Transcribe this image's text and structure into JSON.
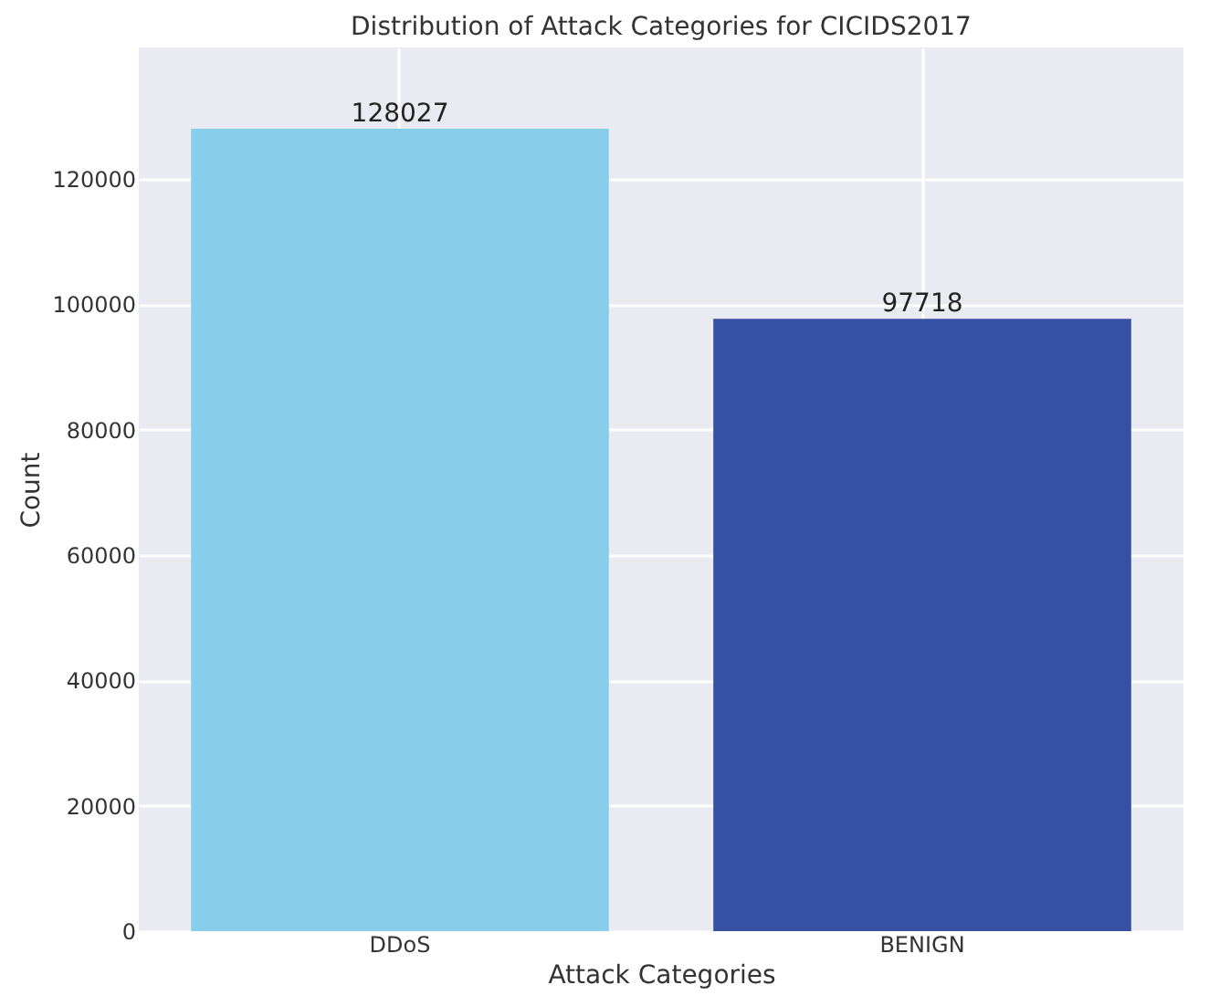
{
  "chart_data": {
    "type": "bar",
    "title": "Distribution of Attack Categories for CICIDS2017",
    "xlabel": "Attack Categories",
    "ylabel": "Count",
    "categories": [
      "DDoS",
      "BENIGN"
    ],
    "values": [
      128027,
      97718
    ],
    "colors": [
      "#87ceeb",
      "#3651a3"
    ],
    "data_labels": true,
    "ylim": [
      0,
      141000
    ],
    "yticks": [
      0,
      20000,
      40000,
      60000,
      80000,
      100000,
      120000
    ],
    "grid": true
  }
}
